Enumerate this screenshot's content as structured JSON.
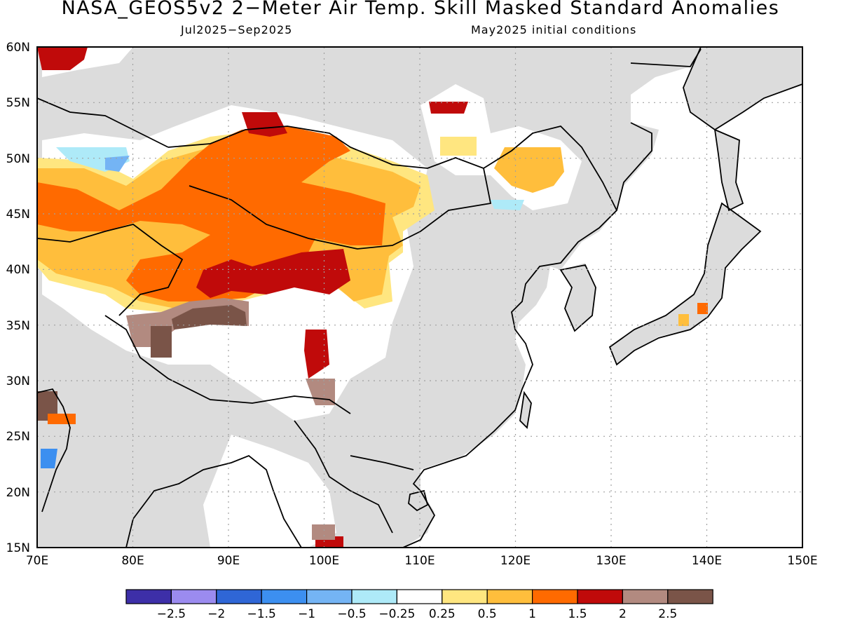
{
  "title": "NASA_GEOS5v2 2−Meter Air Temp. Skill Masked Standard Anomalies",
  "subtitle_left": "Jul2025−Sep2025",
  "subtitle_right": "May2025 initial conditions",
  "map": {
    "lon_range": [
      70,
      150
    ],
    "lat_range": [
      15,
      60
    ],
    "lon_ticks": [
      "70E",
      "80E",
      "90E",
      "100E",
      "110E",
      "120E",
      "130E",
      "140E",
      "150E"
    ],
    "lat_ticks": [
      "15N",
      "20N",
      "25N",
      "30N",
      "35N",
      "40N",
      "45N",
      "50N",
      "55N",
      "60N"
    ],
    "grid": "dotted",
    "land_mask_color": "#dcdcdc",
    "ocean_color": "#ffffff",
    "coastline_color": "#000000"
  },
  "colorbar": {
    "colors": [
      "#3d2fa8",
      "#9b8bef",
      "#2f66d6",
      "#3c8ff0",
      "#74b4f4",
      "#aeeaf8",
      "#ffffff",
      "#ffe680",
      "#ffbe3c",
      "#ff6a00",
      "#c00a0a",
      "#b28a80",
      "#7a5448"
    ],
    "labels": [
      "−2.5",
      "−2",
      "−1.5",
      "−1",
      "−0.5",
      "−0.25",
      "0.25",
      "0.5",
      "1",
      "1.5",
      "2",
      "2.5"
    ]
  }
}
